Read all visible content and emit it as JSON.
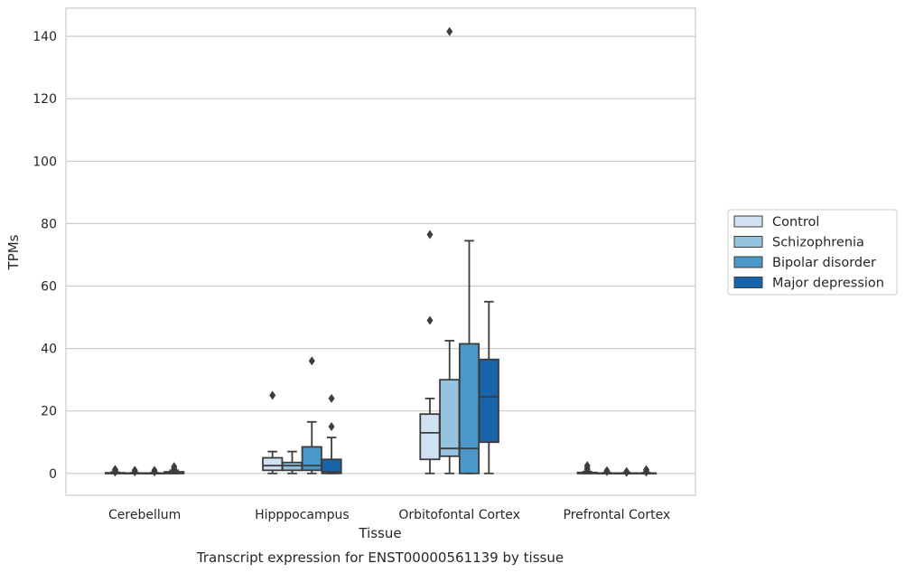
{
  "chart_data": {
    "type": "box",
    "xlabel": "Tissue",
    "ylabel": "TPMs",
    "caption": "Transcript expression for ENST00000561139 by tissue",
    "ylim": [
      -7,
      149
    ],
    "yticks": [
      0,
      20,
      40,
      60,
      80,
      100,
      120,
      140
    ],
    "grid": true,
    "legend_position": "right",
    "categories": [
      "Cerebellum",
      "Hipppocampus",
      "Orbitofontal Cortex",
      "Prefrontal Cortex"
    ],
    "series": [
      {
        "name": "Control",
        "color": "#d0e1f2",
        "boxes": [
          {
            "whislo": 0,
            "q1": 0,
            "med": 0,
            "q3": 0.2,
            "whishi": 0.4,
            "fliers": [
              0.4,
              0.9,
              1.3
            ]
          },
          {
            "whislo": 0,
            "q1": 1,
            "med": 2.5,
            "q3": 5,
            "whishi": 7,
            "fliers": [
              25
            ]
          },
          {
            "whislo": 0,
            "q1": 4.5,
            "med": 13,
            "q3": 19,
            "whishi": 24,
            "fliers": [
              49,
              76.5
            ]
          },
          {
            "whislo": 0,
            "q1": 0,
            "med": 0,
            "q3": 0.3,
            "whishi": 0.6,
            "fliers": [
              1.2,
              1.8,
              2.5
            ]
          }
        ]
      },
      {
        "name": "Schizophrenia",
        "color": "#94c4df",
        "boxes": [
          {
            "whislo": 0,
            "q1": 0,
            "med": 0,
            "q3": 0.1,
            "whishi": 0.2,
            "fliers": [
              0.5,
              1.0
            ]
          },
          {
            "whislo": 0,
            "q1": 1,
            "med": 2.5,
            "q3": 3.5,
            "whishi": 7,
            "fliers": []
          },
          {
            "whislo": 0,
            "q1": 5.5,
            "med": 8,
            "q3": 30,
            "whishi": 42.5,
            "fliers": [
              141.5
            ]
          },
          {
            "whislo": 0,
            "q1": 0,
            "med": 0,
            "q3": 0.1,
            "whishi": 0.2,
            "fliers": [
              0.6,
              0.9
            ]
          }
        ]
      },
      {
        "name": "Bipolar disorder",
        "color": "#4a98c9",
        "boxes": [
          {
            "whislo": 0,
            "q1": 0,
            "med": 0,
            "q3": 0.1,
            "whishi": 0.2,
            "fliers": [
              0.5,
              1.0
            ]
          },
          {
            "whislo": 0,
            "q1": 1,
            "med": 2.5,
            "q3": 8.5,
            "whishi": 16.5,
            "fliers": [
              36
            ]
          },
          {
            "whislo": 0,
            "q1": 0,
            "med": 8,
            "q3": 41.5,
            "whishi": 74.5,
            "fliers": []
          },
          {
            "whislo": 0,
            "q1": 0,
            "med": 0,
            "q3": 0.1,
            "whishi": 0.2,
            "fliers": [
              0.3,
              0.6
            ]
          }
        ]
      },
      {
        "name": "Major depression",
        "color": "#1764ab",
        "boxes": [
          {
            "whislo": 0,
            "q1": 0,
            "med": 0,
            "q3": 0.5,
            "whishi": 1.0,
            "fliers": [
              1.5,
              2.2
            ]
          },
          {
            "whislo": 0,
            "q1": 0,
            "med": 0.5,
            "q3": 4.5,
            "whishi": 11.5,
            "fliers": [
              15,
              24
            ]
          },
          {
            "whislo": 0,
            "q1": 10,
            "med": 24.5,
            "q3": 36.5,
            "whishi": 55,
            "fliers": []
          },
          {
            "whislo": 0,
            "q1": 0,
            "med": 0,
            "q3": 0.1,
            "whishi": 0.2,
            "fliers": [
              0.4,
              0.8,
              1.2
            ]
          }
        ]
      }
    ]
  }
}
